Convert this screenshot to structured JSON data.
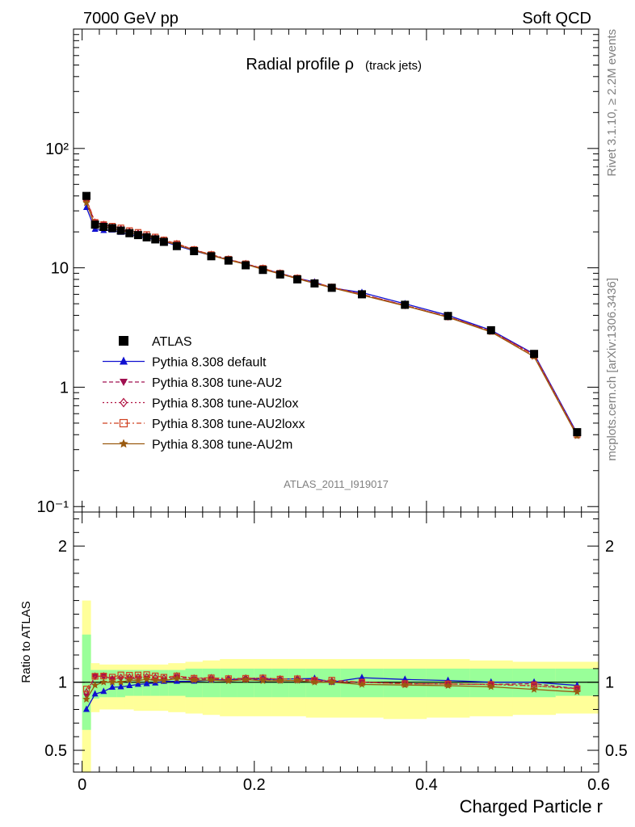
{
  "header": {
    "left": "7000 GeV pp",
    "right": "Soft QCD"
  },
  "side_labels": {
    "rivet": "Rivet 3.1.10, ≥ 2.2M events",
    "mcplots": "mcplots.cern.ch [arXiv:1306.3436]"
  },
  "chart_data": [
    {
      "type": "line",
      "title": "Radial profile ρ",
      "subtitle": "(track jets)",
      "watermark": "ATLAS_2011_I919017",
      "xlabel": "",
      "ylabel": "",
      "log_y": true,
      "xlim": [
        -0.01,
        0.6
      ],
      "ylim": [
        0.09,
        1000
      ],
      "y_tick_labels": [
        "10⁻¹",
        "1",
        "10",
        "10²"
      ],
      "y_tick_values": [
        0.1,
        1,
        10,
        100
      ],
      "x": [
        0.005,
        0.015,
        0.025,
        0.035,
        0.045,
        0.055,
        0.065,
        0.075,
        0.085,
        0.095,
        0.11,
        0.13,
        0.15,
        0.17,
        0.19,
        0.21,
        0.23,
        0.25,
        0.27,
        0.29,
        0.325,
        0.375,
        0.425,
        0.475,
        0.525,
        0.575
      ],
      "legend_position": "middle-left",
      "series": [
        {
          "name": "ATLAS",
          "marker": "square",
          "color": "#000000",
          "dash": "",
          "values": [
            40,
            23,
            22,
            21.5,
            20.5,
            19.5,
            18.8,
            18,
            17.3,
            16.5,
            15.2,
            13.8,
            12.5,
            11.5,
            10.5,
            9.6,
            8.8,
            8.0,
            7.4,
            6.8,
            6.0,
            4.9,
            3.95,
            3.0,
            1.9,
            0.42
          ]
        },
        {
          "name": "Pythia 8.308 default",
          "marker": "triangle-up",
          "color": "#1010d0",
          "dash": "",
          "values": [
            32,
            21,
            20.5,
            20.7,
            19.8,
            19.0,
            18.5,
            17.8,
            17.2,
            16.6,
            15.3,
            13.9,
            12.7,
            11.7,
            10.8,
            9.8,
            9.0,
            8.2,
            7.6,
            6.8,
            6.2,
            5.0,
            4.0,
            3.0,
            1.9,
            0.41
          ]
        },
        {
          "name": "Pythia 8.308 tune-AU2",
          "marker": "triangle-down",
          "color": "#a01050",
          "dash": "5,3",
          "values": [
            36,
            24,
            23,
            22,
            21,
            20,
            19.3,
            18.5,
            17.6,
            16.8,
            15.8,
            14.1,
            12.8,
            11.7,
            10.7,
            9.8,
            8.9,
            8.1,
            7.5,
            6.8,
            6.0,
            4.85,
            3.9,
            2.95,
            1.88,
            0.4
          ]
        },
        {
          "name": "Pythia 8.308 tune-AU2lox",
          "marker": "diamond-open",
          "color": "#b01040",
          "dash": "2,3",
          "values": [
            37,
            24,
            23,
            22,
            21.2,
            20.2,
            19.5,
            18.7,
            17.9,
            17.0,
            15.9,
            14.2,
            12.9,
            11.8,
            10.8,
            9.9,
            9.0,
            8.2,
            7.5,
            6.85,
            6.0,
            4.85,
            3.9,
            2.95,
            1.85,
            0.4
          ]
        },
        {
          "name": "Pythia 8.308 tune-AU2loxx",
          "marker": "square-open",
          "color": "#d04020",
          "dash": "6,3,2,3",
          "values": [
            38,
            24,
            23,
            22.3,
            21.6,
            20.5,
            19.8,
            19.0,
            18.1,
            17.1,
            15.9,
            14.2,
            12.9,
            11.8,
            10.8,
            9.9,
            9.0,
            8.2,
            7.5,
            6.9,
            6.0,
            4.85,
            3.9,
            2.95,
            1.85,
            0.4
          ]
        },
        {
          "name": "Pythia 8.308 tune-AU2m",
          "marker": "star",
          "color": "#9a5a10",
          "dash": "",
          "values": [
            35,
            22.5,
            22,
            21.5,
            20.5,
            19.8,
            19.0,
            18.4,
            17.5,
            16.7,
            15.6,
            14.0,
            12.7,
            11.6,
            10.7,
            9.7,
            8.9,
            8.1,
            7.4,
            6.8,
            5.9,
            4.8,
            3.85,
            2.9,
            1.8,
            0.39
          ]
        }
      ]
    },
    {
      "type": "line",
      "title": "",
      "xlabel": "Charged Particle r",
      "ylabel": "Ratio to ATLAS",
      "xlim": [
        -0.01,
        0.6
      ],
      "ylim": [
        0.34,
        2.25
      ],
      "x_tick_labels": [
        "0",
        "0.2",
        "0.4",
        "0.6"
      ],
      "x_tick_values": [
        0,
        0.2,
        0.4,
        0.6
      ],
      "y_tick_labels": [
        "0.5",
        "1",
        "2"
      ],
      "y_tick_values": [
        0.5,
        1,
        2
      ],
      "reference_line": 1,
      "bands": {
        "bin_edges": [
          0,
          0.01,
          0.02,
          0.03,
          0.04,
          0.05,
          0.06,
          0.07,
          0.08,
          0.09,
          0.1,
          0.12,
          0.14,
          0.16,
          0.18,
          0.2,
          0.22,
          0.24,
          0.26,
          0.28,
          0.3,
          0.35,
          0.4,
          0.45,
          0.5,
          0.55,
          0.6
        ],
        "stat_low": [
          0.65,
          0.88,
          0.89,
          0.89,
          0.89,
          0.9,
          0.9,
          0.9,
          0.9,
          0.9,
          0.9,
          0.89,
          0.89,
          0.89,
          0.89,
          0.89,
          0.89,
          0.89,
          0.89,
          0.89,
          0.89,
          0.89,
          0.89,
          0.89,
          0.89,
          0.9
        ],
        "stat_high": [
          1.35,
          1.09,
          1.09,
          1.09,
          1.09,
          1.09,
          1.09,
          1.09,
          1.09,
          1.09,
          1.09,
          1.1,
          1.1,
          1.1,
          1.1,
          1.1,
          1.1,
          1.1,
          1.1,
          1.1,
          1.1,
          1.1,
          1.1,
          1.1,
          1.1,
          1.1
        ],
        "syst_low": [
          0.3,
          0.78,
          0.8,
          0.8,
          0.8,
          0.8,
          0.79,
          0.79,
          0.79,
          0.79,
          0.78,
          0.77,
          0.76,
          0.75,
          0.75,
          0.75,
          0.75,
          0.75,
          0.74,
          0.74,
          0.74,
          0.73,
          0.74,
          0.75,
          0.76,
          0.77
        ],
        "syst_high": [
          1.6,
          1.14,
          1.13,
          1.13,
          1.13,
          1.13,
          1.13,
          1.13,
          1.13,
          1.13,
          1.14,
          1.15,
          1.16,
          1.17,
          1.17,
          1.17,
          1.17,
          1.17,
          1.17,
          1.17,
          1.17,
          1.17,
          1.17,
          1.16,
          1.15,
          1.15
        ]
      },
      "stat_band_color": "#99ff99",
      "syst_band_color": "#ffff99"
    }
  ]
}
